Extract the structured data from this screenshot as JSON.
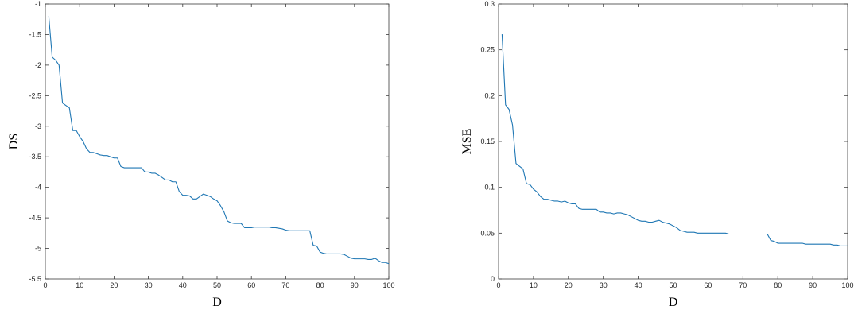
{
  "chart_data": [
    {
      "type": "line",
      "title": "",
      "xlabel": "D",
      "ylabel": "DS",
      "xlim": [
        0,
        100
      ],
      "ylim": [
        -5.5,
        -1
      ],
      "x_ticks": [
        0,
        10,
        20,
        30,
        40,
        50,
        60,
        70,
        80,
        90,
        100
      ],
      "x_tick_labels": [
        "0",
        "10",
        "20",
        "30",
        "40",
        "50",
        "60",
        "70",
        "80",
        "90",
        "100"
      ],
      "y_ticks": [
        -1,
        -1.5,
        -2,
        -2.5,
        -3,
        -3.5,
        -4,
        -4.5,
        -5,
        -5.5
      ],
      "y_tick_labels": [
        "-1",
        "-1.5",
        "-2",
        "-2.5",
        "-3",
        "-3.5",
        "-4",
        "-4.5",
        "-5",
        "-5.5"
      ],
      "grid": false,
      "color": "#1f77b4",
      "series": [
        {
          "x": [
            1,
            2,
            3,
            4,
            5,
            6,
            7,
            8,
            9,
            10,
            11,
            12,
            13,
            14,
            15,
            16,
            17,
            18,
            19,
            20,
            21,
            22,
            23,
            24,
            25,
            26,
            27,
            28,
            29,
            30,
            31,
            32,
            33,
            34,
            35,
            36,
            37,
            38,
            39,
            40,
            41,
            42,
            43,
            44,
            45,
            46,
            47,
            48,
            49,
            50,
            51,
            52,
            53,
            54,
            55,
            56,
            57,
            58,
            59,
            60,
            61,
            62,
            63,
            64,
            65,
            66,
            67,
            68,
            69,
            70,
            71,
            72,
            73,
            74,
            75,
            76,
            77,
            78,
            79,
            80,
            81,
            82,
            83,
            84,
            85,
            86,
            87,
            88,
            89,
            90,
            91,
            92,
            93,
            94,
            95,
            96,
            97,
            98,
            99,
            100
          ],
          "y": [
            -1.2,
            -1.87,
            -1.92,
            -2.0,
            -2.62,
            -2.66,
            -2.7,
            -3.07,
            -3.07,
            -3.17,
            -3.25,
            -3.37,
            -3.43,
            -3.43,
            -3.45,
            -3.47,
            -3.48,
            -3.48,
            -3.5,
            -3.52,
            -3.52,
            -3.66,
            -3.68,
            -3.68,
            -3.68,
            -3.68,
            -3.68,
            -3.68,
            -3.75,
            -3.75,
            -3.77,
            -3.77,
            -3.8,
            -3.84,
            -3.88,
            -3.88,
            -3.91,
            -3.91,
            -4.07,
            -4.13,
            -4.13,
            -4.14,
            -4.19,
            -4.19,
            -4.15,
            -4.11,
            -4.13,
            -4.15,
            -4.19,
            -4.22,
            -4.3,
            -4.4,
            -4.55,
            -4.58,
            -4.59,
            -4.59,
            -4.59,
            -4.66,
            -4.66,
            -4.66,
            -4.65,
            -4.65,
            -4.65,
            -4.65,
            -4.65,
            -4.66,
            -4.66,
            -4.67,
            -4.68,
            -4.7,
            -4.71,
            -4.71,
            -4.71,
            -4.71,
            -4.71,
            -4.71,
            -4.71,
            -4.95,
            -4.96,
            -5.06,
            -5.08,
            -5.09,
            -5.09,
            -5.09,
            -5.09,
            -5.09,
            -5.1,
            -5.13,
            -5.16,
            -5.17,
            -5.17,
            -5.17,
            -5.17,
            -5.18,
            -5.18,
            -5.16,
            -5.2,
            -5.23,
            -5.23,
            -5.25
          ]
        }
      ]
    },
    {
      "type": "line",
      "title": "",
      "xlabel": "D",
      "ylabel": "MSE",
      "xlim": [
        0,
        100
      ],
      "ylim": [
        0,
        0.3
      ],
      "x_ticks": [
        0,
        10,
        20,
        30,
        40,
        50,
        60,
        70,
        80,
        90,
        100
      ],
      "x_tick_labels": [
        "0",
        "10",
        "20",
        "30",
        "40",
        "50",
        "60",
        "70",
        "80",
        "90",
        "100"
      ],
      "y_ticks": [
        0,
        0.05,
        0.1,
        0.15,
        0.2,
        0.25,
        0.3
      ],
      "y_tick_labels": [
        "0",
        "0.05",
        "0.1",
        "0.15",
        "0.2",
        "0.25",
        "0.3"
      ],
      "grid": false,
      "color": "#1f77b4",
      "series": [
        {
          "x": [
            1,
            2,
            3,
            4,
            5,
            6,
            7,
            8,
            9,
            10,
            11,
            12,
            13,
            14,
            15,
            16,
            17,
            18,
            19,
            20,
            21,
            22,
            23,
            24,
            25,
            26,
            27,
            28,
            29,
            30,
            31,
            32,
            33,
            34,
            35,
            36,
            37,
            38,
            39,
            40,
            41,
            42,
            43,
            44,
            45,
            46,
            47,
            48,
            49,
            50,
            51,
            52,
            53,
            54,
            55,
            56,
            57,
            58,
            59,
            60,
            61,
            62,
            63,
            64,
            65,
            66,
            67,
            68,
            69,
            70,
            71,
            72,
            73,
            74,
            75,
            76,
            77,
            78,
            79,
            80,
            81,
            82,
            83,
            84,
            85,
            86,
            87,
            88,
            89,
            90,
            91,
            92,
            93,
            94,
            95,
            96,
            97,
            98,
            99,
            100
          ],
          "y": [
            0.267,
            0.19,
            0.185,
            0.168,
            0.126,
            0.123,
            0.12,
            0.104,
            0.103,
            0.098,
            0.095,
            0.09,
            0.087,
            0.087,
            0.086,
            0.085,
            0.085,
            0.084,
            0.085,
            0.083,
            0.082,
            0.082,
            0.077,
            0.076,
            0.076,
            0.076,
            0.076,
            0.076,
            0.073,
            0.073,
            0.072,
            0.072,
            0.071,
            0.072,
            0.072,
            0.071,
            0.07,
            0.068,
            0.066,
            0.064,
            0.063,
            0.063,
            0.062,
            0.062,
            0.063,
            0.064,
            0.062,
            0.061,
            0.06,
            0.058,
            0.056,
            0.053,
            0.052,
            0.051,
            0.051,
            0.051,
            0.05,
            0.05,
            0.05,
            0.05,
            0.05,
            0.05,
            0.05,
            0.05,
            0.05,
            0.049,
            0.049,
            0.049,
            0.049,
            0.049,
            0.049,
            0.049,
            0.049,
            0.049,
            0.049,
            0.049,
            0.049,
            0.042,
            0.041,
            0.039,
            0.039,
            0.039,
            0.039,
            0.039,
            0.039,
            0.039,
            0.039,
            0.038,
            0.038,
            0.038,
            0.038,
            0.038,
            0.038,
            0.038,
            0.038,
            0.037,
            0.037,
            0.036,
            0.036,
            0.036
          ]
        }
      ]
    }
  ]
}
